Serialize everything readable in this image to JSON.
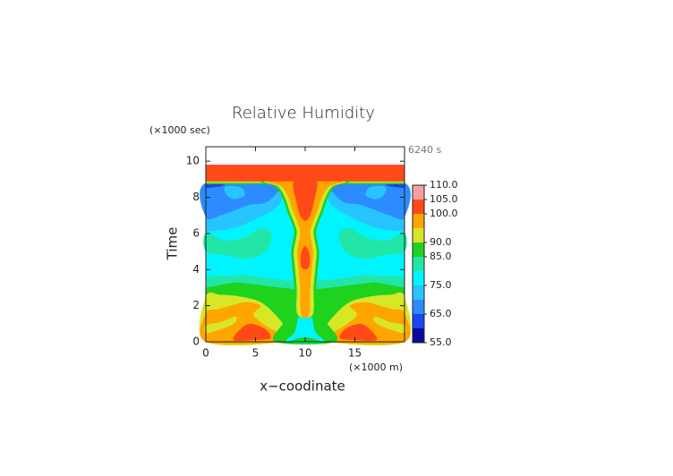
{
  "chart_data": {
    "type": "contour",
    "title": "Relative Humidity",
    "x_label": "x−coodinate",
    "y_label": "Time",
    "x_unit": "(×1000 m)",
    "y_unit": "(×1000 sec)",
    "annotation": "6240 s",
    "xlim": [
      0,
      20
    ],
    "ylim": [
      0,
      10.8
    ],
    "xticks": [
      0,
      5,
      10,
      15
    ],
    "yticks": [
      0,
      2,
      4,
      6,
      8,
      10
    ],
    "levels": [
      55,
      60,
      65,
      70,
      75,
      80,
      85,
      90,
      95,
      100,
      105,
      110
    ],
    "colors": [
      "#0a0a9a",
      "#1846f0",
      "#2c8cff",
      "#28c4ff",
      "#00f4ff",
      "#22e6a8",
      "#1ed21e",
      "#d8e628",
      "#ffa500",
      "#ff4a18",
      "#f4a0a0"
    ],
    "colorbar_ticks": [
      {
        "value": 110,
        "label": "110.0"
      },
      {
        "value": 105,
        "label": "105.0"
      },
      {
        "value": 100,
        "label": "100.0"
      },
      {
        "value": 90,
        "label": "90.0"
      },
      {
        "value": 85,
        "label": "85.0"
      },
      {
        "value": 75,
        "label": "75.0"
      },
      {
        "value": 65,
        "label": "65.0"
      },
      {
        "value": 55,
        "label": "55.0"
      }
    ]
  }
}
